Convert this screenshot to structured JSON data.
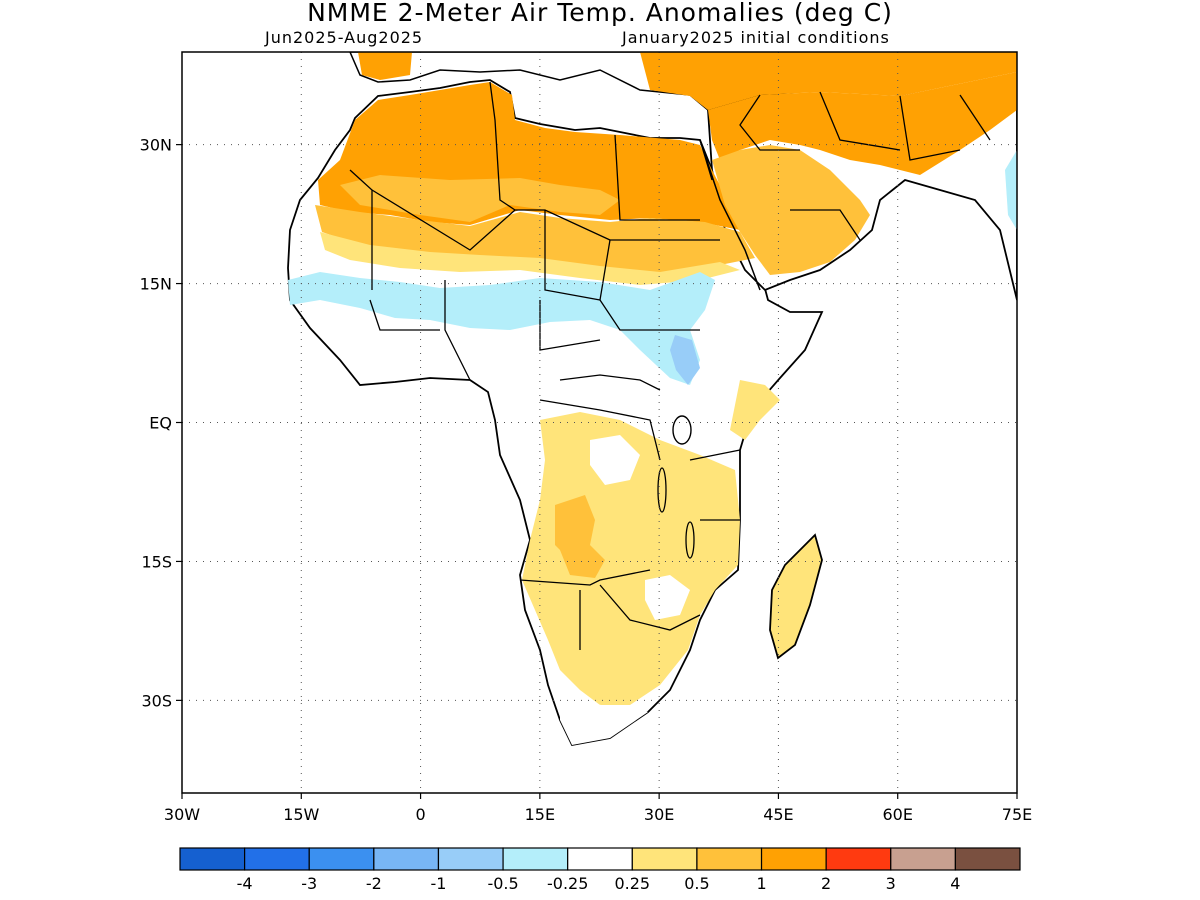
{
  "title": "NMME 2-Meter Air Temp. Anomalies (deg C)",
  "subtitle_left": "Jun2025-Aug2025",
  "subtitle_right": "January2025 initial conditions",
  "lat_labels": [
    "30N",
    "15N",
    "EQ",
    "15S",
    "30S"
  ],
  "lat_values": [
    30,
    15,
    0,
    -15,
    -30
  ],
  "lon_labels": [
    "30W",
    "15W",
    "0",
    "15E",
    "30E",
    "45E",
    "60E",
    "75E"
  ],
  "lon_values": [
    -30,
    -15,
    0,
    15,
    30,
    45,
    60,
    75
  ],
  "map_extent": {
    "lon_min": -30,
    "lon_max": 75,
    "lat_min": -40,
    "lat_max": 40
  },
  "grid": "dotted",
  "colorbar": {
    "colors": [
      "#1560d0",
      "#2270e8",
      "#3b90f0",
      "#78b6f5",
      "#98cdf8",
      "#b4eefa",
      "#ffffff",
      "#ffe47a",
      "#ffc13a",
      "#ffa103",
      "#ff3a10",
      "#c8a090",
      "#7a5040"
    ],
    "labels": [
      "-4",
      "-3",
      "-2",
      "-1",
      "-0.5",
      "-0.25",
      "0.25",
      "0.5",
      "1",
      "2",
      "3",
      "4"
    ]
  }
}
